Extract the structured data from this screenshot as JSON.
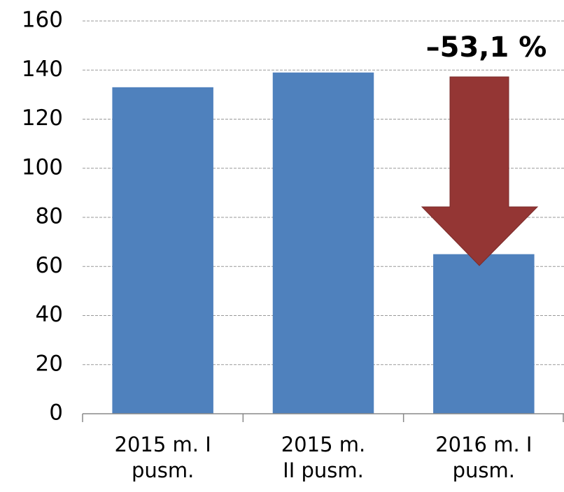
{
  "chart_data": {
    "type": "bar",
    "annotation": "–53,1 %",
    "categories": [
      "2015 m. I pusm.",
      "2015 m. II pusm.",
      "2016 m. I pusm."
    ],
    "values": [
      133,
      139,
      65
    ],
    "color": "#4f81bd",
    "ylim": [
      0,
      160
    ],
    "yticks": [
      0,
      20,
      40,
      60,
      80,
      100,
      120,
      140,
      160
    ],
    "grid": true
  }
}
